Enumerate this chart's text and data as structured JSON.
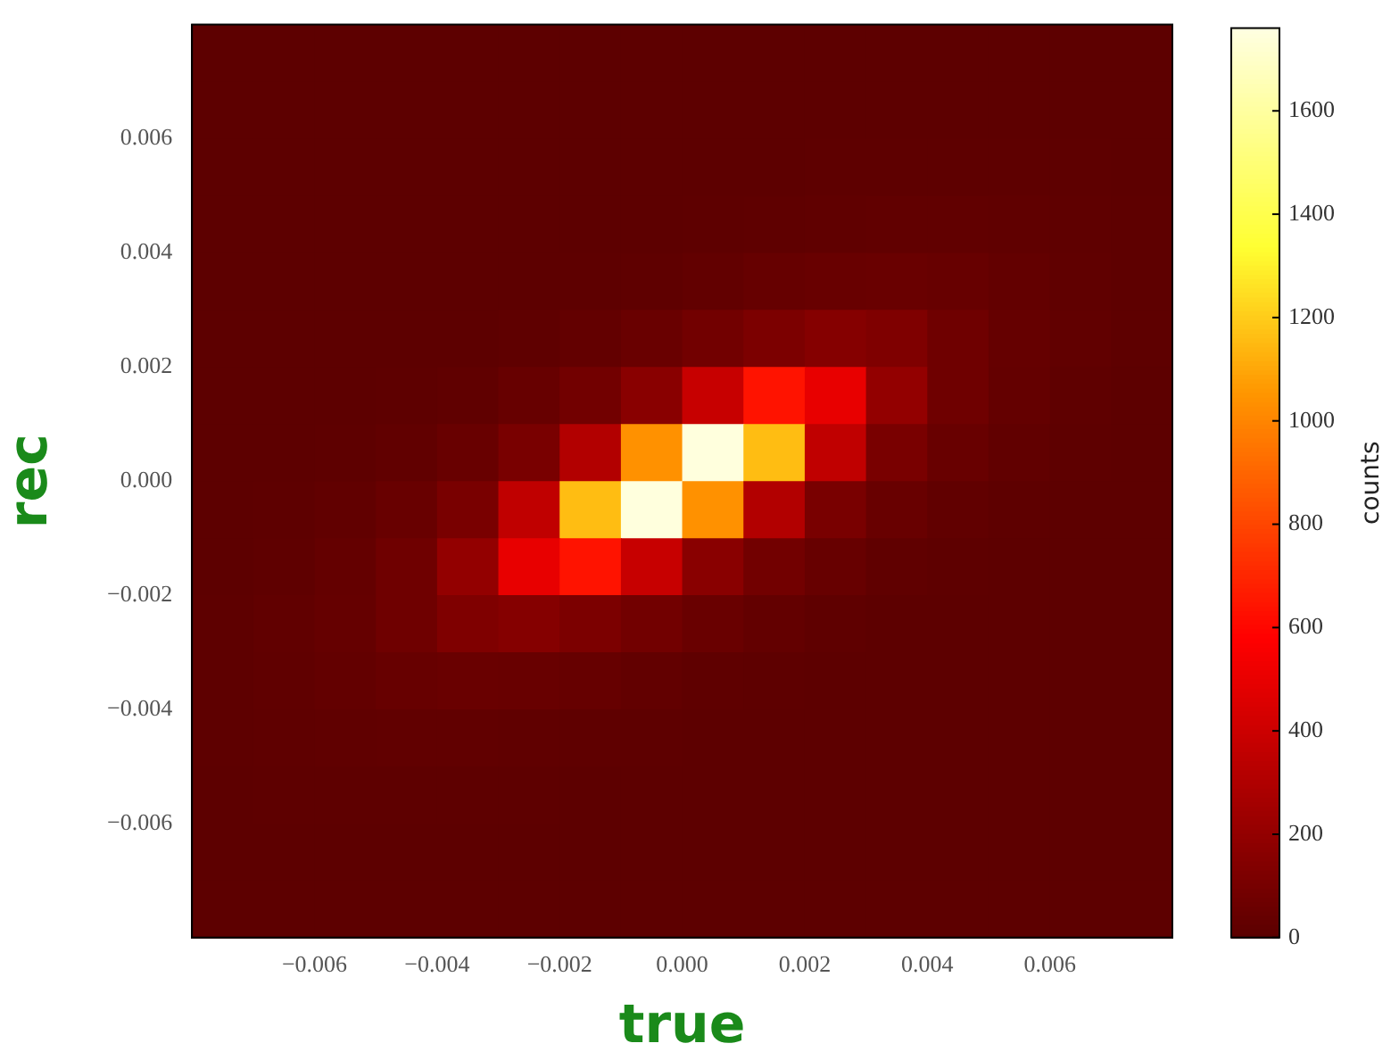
{
  "chart_data": {
    "type": "heatmap",
    "xlabel": "true",
    "ylabel": "rec",
    "clabel": "counts",
    "x": [
      -0.0075,
      -0.0065,
      -0.0055,
      -0.0045,
      -0.0035,
      -0.0025,
      -0.0015,
      -0.0005,
      0.0005,
      0.0015,
      0.0025,
      0.0035,
      0.0045,
      0.0055,
      0.0065,
      0.0075
    ],
    "xlim": [
      -0.008,
      0.008
    ],
    "ylim": [
      -0.008,
      0.008
    ],
    "xticks": [
      {
        "value": -0.006,
        "label": "−0.006"
      },
      {
        "value": -0.004,
        "label": "−0.004"
      },
      {
        "value": -0.002,
        "label": "−0.002"
      },
      {
        "value": 0,
        "label": "0.000"
      },
      {
        "value": 0.002,
        "label": "0.002"
      },
      {
        "value": 0.004,
        "label": "0.004"
      },
      {
        "value": 0.006,
        "label": "0.006"
      }
    ],
    "yticks": [
      {
        "value": -0.006,
        "label": "−0.006"
      },
      {
        "value": -0.004,
        "label": "−0.004"
      },
      {
        "value": -0.002,
        "label": "−0.002"
      },
      {
        "value": 0,
        "label": "0.000"
      },
      {
        "value": 0.002,
        "label": "0.002"
      },
      {
        "value": 0.004,
        "label": "0.004"
      },
      {
        "value": 0.006,
        "label": "0.006"
      }
    ],
    "clim": [
      0,
      1760
    ],
    "cticks": [
      0,
      200,
      400,
      600,
      800,
      1000,
      1200,
      1400,
      1600
    ],
    "cells": [
      [
        10,
        10,
        10,
        10,
        10,
        10,
        10,
        10,
        10,
        10,
        10,
        10,
        10,
        10,
        10,
        10
      ],
      [
        10,
        10,
        10,
        10,
        10,
        10,
        10,
        10,
        10,
        10,
        10,
        11,
        11,
        11,
        11,
        10
      ],
      [
        10,
        10,
        10,
        10,
        10,
        10,
        10,
        10,
        10,
        12,
        13,
        14,
        15,
        14,
        13,
        12
      ],
      [
        10,
        10,
        10,
        10,
        10,
        10,
        10,
        11,
        13,
        17,
        20,
        23,
        23,
        20,
        17,
        13
      ],
      [
        10,
        10,
        10,
        10,
        10,
        11,
        14,
        19,
        29,
        41,
        50,
        52,
        45,
        33,
        22,
        15
      ],
      [
        10,
        10,
        10,
        10,
        12,
        18,
        30,
        53,
        85,
        120,
        150,
        130,
        75,
        40,
        23,
        15
      ],
      [
        10,
        10,
        12,
        15,
        22,
        45,
        85,
        165,
        385,
        640,
        500,
        200,
        75,
        36,
        19,
        12
      ],
      [
        10,
        12,
        15,
        25,
        50,
        110,
        310,
        1040,
        1750,
        1160,
        360,
        110,
        50,
        25,
        15,
        10
      ],
      [
        10,
        15,
        25,
        50,
        110,
        360,
        1160,
        1750,
        1040,
        310,
        110,
        50,
        25,
        15,
        12,
        10
      ],
      [
        12,
        19,
        36,
        75,
        200,
        500,
        640,
        385,
        165,
        85,
        45,
        22,
        15,
        12,
        10,
        10
      ],
      [
        15,
        23,
        40,
        75,
        130,
        150,
        120,
        85,
        53,
        30,
        18,
        12,
        10,
        10,
        10,
        10
      ],
      [
        15,
        22,
        33,
        45,
        52,
        50,
        41,
        29,
        19,
        14,
        11,
        10,
        10,
        10,
        10,
        10
      ],
      [
        13,
        17,
        20,
        23,
        23,
        20,
        17,
        13,
        11,
        10,
        10,
        10,
        10,
        10,
        10,
        10
      ],
      [
        12,
        13,
        14,
        15,
        14,
        13,
        12,
        10,
        10,
        10,
        10,
        10,
        10,
        10,
        10,
        10
      ],
      [
        10,
        11,
        11,
        11,
        11,
        10,
        10,
        10,
        10,
        10,
        10,
        10,
        10,
        10,
        10,
        10
      ],
      [
        10,
        10,
        10,
        10,
        10,
        10,
        10,
        10,
        10,
        10,
        10,
        10,
        10,
        10,
        10,
        10
      ]
    ]
  }
}
